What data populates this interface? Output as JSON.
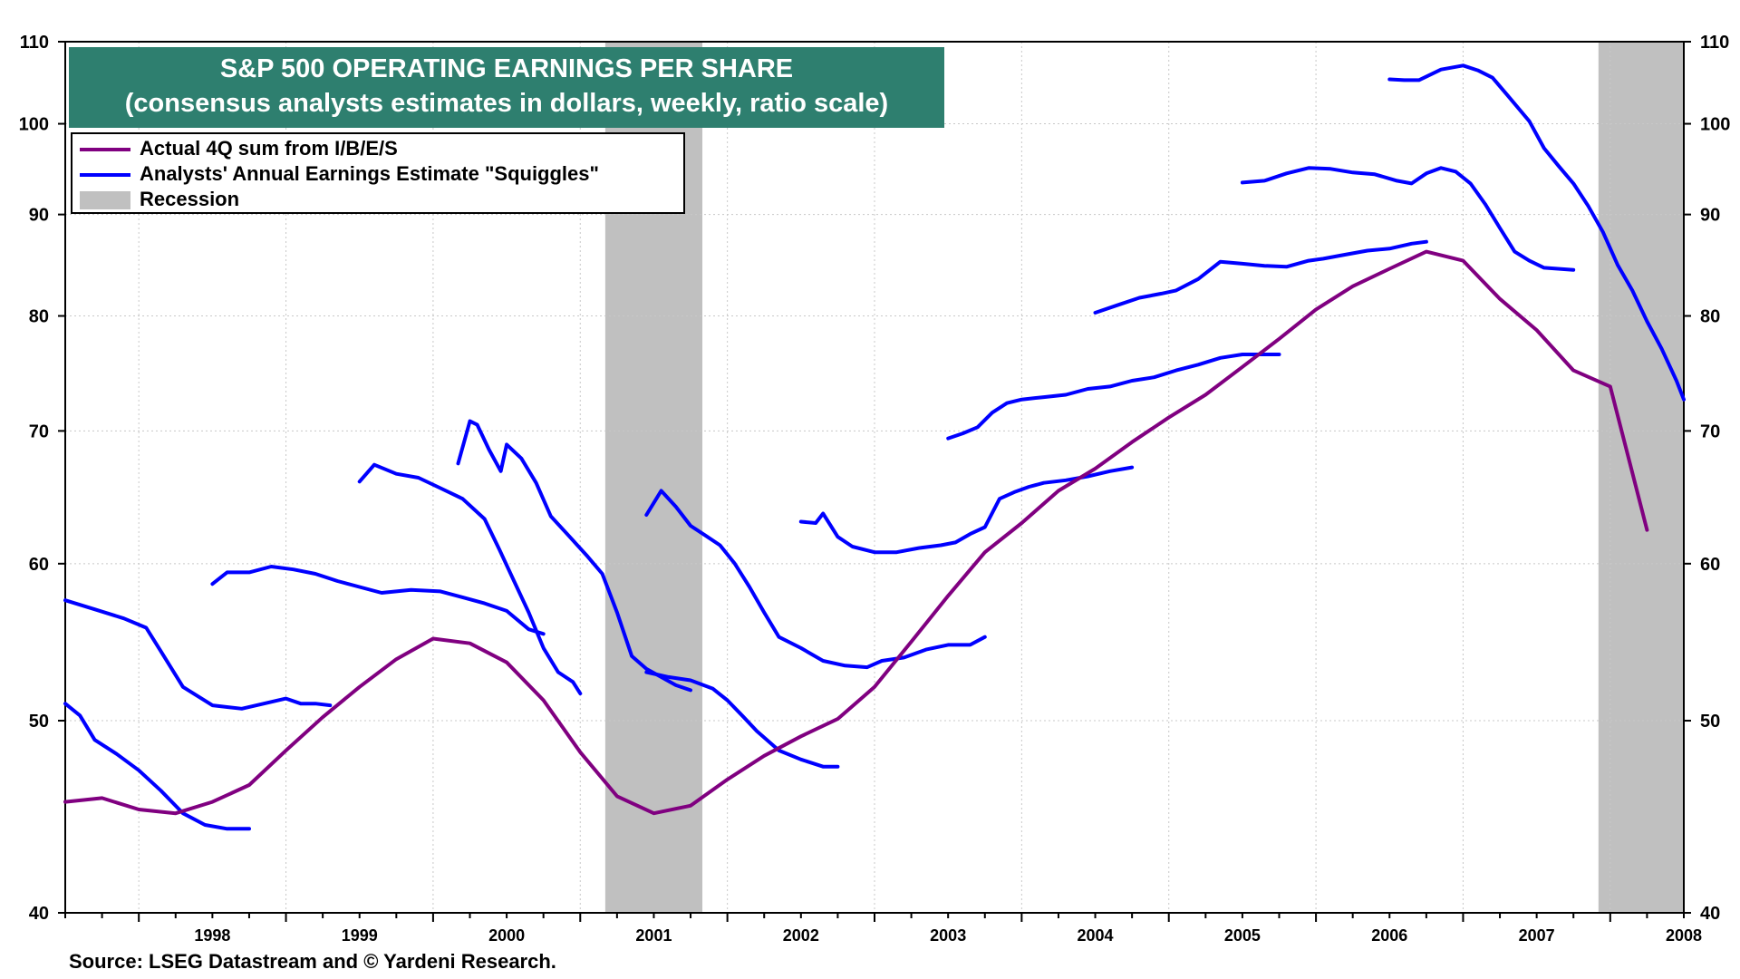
{
  "chart_data": {
    "type": "line",
    "title": "S&P 500 OPERATING EARNINGS PER SHARE",
    "subtitle": "(consensus analysts estimates in dollars, weekly, ratio scale)",
    "y_scale": "log",
    "ylim": [
      40,
      110
    ],
    "y_ticks": [
      40,
      50,
      60,
      70,
      80,
      90,
      100,
      110
    ],
    "xlim": [
      1997.5,
      2008.5
    ],
    "x_tick_labels": [
      "1998",
      "1999",
      "2000",
      "2001",
      "2002",
      "2003",
      "2004",
      "2005",
      "2006",
      "2007",
      "2008"
    ],
    "grid": true,
    "legend_position": "top-left",
    "legend": {
      "actual": "Actual 4Q sum from  I/B/E/S",
      "squiggles": "Analysts' Annual Earnings Estimate \"Squiggles\"",
      "recession": "Recession"
    },
    "colors": {
      "actual": "#800080",
      "squiggles": "#0000ff",
      "recession": "#c0c0c0",
      "title_bg": "#2e7f6f"
    },
    "recessions": [
      [
        2001.17,
        2001.83
      ],
      [
        2007.92,
        2008.5
      ]
    ],
    "actual": {
      "x": [
        1997.5,
        1997.75,
        1998.0,
        1998.25,
        1998.5,
        1998.75,
        1999.0,
        1999.25,
        1999.5,
        1999.75,
        2000.0,
        2000.25,
        2000.5,
        2000.75,
        2001.0,
        2001.25,
        2001.5,
        2001.75,
        2002.0,
        2002.25,
        2002.5,
        2002.75,
        2003.0,
        2003.25,
        2003.5,
        2003.75,
        2004.0,
        2004.25,
        2004.5,
        2004.75,
        2005.0,
        2005.25,
        2005.5,
        2005.75,
        2006.0,
        2006.25,
        2006.5,
        2006.75,
        2007.0,
        2007.25,
        2007.5,
        2007.75,
        2008.0,
        2008.25
      ],
      "y": [
        45.5,
        45.7,
        45.1,
        44.9,
        45.5,
        46.4,
        48.3,
        50.2,
        52.0,
        53.7,
        55.0,
        54.7,
        53.5,
        51.2,
        48.2,
        45.8,
        44.9,
        45.3,
        46.7,
        48.0,
        49.1,
        50.1,
        52.0,
        54.8,
        57.8,
        60.8,
        62.9,
        65.3,
        67.0,
        69.1,
        71.1,
        73.0,
        75.4,
        77.9,
        80.6,
        82.8,
        84.5,
        86.2,
        85.3,
        81.6,
        78.7,
        75.1,
        73.7,
        62.4
      ]
    },
    "squiggles": [
      {
        "x": [
          1997.5,
          1997.7,
          1997.9,
          1998.05,
          1998.15,
          1998.3,
          1998.5,
          1998.7,
          1998.85,
          1999.0,
          1999.1,
          1999.2,
          1999.3
        ],
        "y": [
          57.5,
          56.9,
          56.3,
          55.7,
          54.2,
          52.0,
          50.9,
          50.7,
          51.0,
          51.3,
          51.0,
          51.0,
          50.9
        ]
      },
      {
        "x": [
          1997.5,
          1997.6,
          1997.7,
          1997.85,
          1998.0,
          1998.15,
          1998.3,
          1998.45,
          1998.6,
          1998.75
        ],
        "y": [
          51.0,
          50.3,
          48.9,
          48.1,
          47.2,
          46.1,
          44.9,
          44.3,
          44.1,
          44.1
        ]
      },
      {
        "x": [
          1998.5,
          1998.6,
          1998.75,
          1998.9,
          1999.05,
          1999.2,
          1999.35,
          1999.5,
          1999.65,
          1999.85,
          2000.05,
          2000.2,
          2000.35,
          2000.5,
          2000.65,
          2000.75
        ],
        "y": [
          58.6,
          59.4,
          59.4,
          59.8,
          59.6,
          59.3,
          58.8,
          58.4,
          58.0,
          58.2,
          58.1,
          57.7,
          57.3,
          56.8,
          55.6,
          55.3
        ]
      },
      {
        "x": [
          1999.5,
          1999.6,
          1999.75,
          1999.9,
          2000.05,
          2000.2,
          2000.35,
          2000.45,
          2000.55,
          2000.65,
          2000.75,
          2000.85,
          2000.95,
          2001.0
        ],
        "y": [
          66.0,
          67.3,
          66.6,
          66.3,
          65.5,
          64.7,
          63.2,
          61.0,
          58.8,
          56.7,
          54.4,
          52.9,
          52.3,
          51.6
        ]
      },
      {
        "x": [
          2000.17,
          2000.25,
          2000.3,
          2000.38,
          2000.46,
          2000.5,
          2000.6,
          2000.7,
          2000.8,
          2000.92,
          2001.05,
          2001.15,
          2001.25,
          2001.35,
          2001.45,
          2001.55,
          2001.65,
          2001.75
        ],
        "y": [
          67.4,
          70.8,
          70.5,
          68.5,
          66.8,
          68.9,
          67.8,
          65.9,
          63.4,
          62.0,
          60.5,
          59.3,
          56.7,
          53.9,
          53.1,
          52.6,
          52.1,
          51.8
        ]
      },
      {
        "x": [
          2001.45,
          2001.55,
          2001.65,
          2001.75,
          2001.85,
          2001.95,
          2002.05,
          2002.15,
          2002.25,
          2002.35,
          2002.5,
          2002.65,
          2002.8,
          2002.95,
          2003.05,
          2003.2,
          2003.35,
          2003.5,
          2003.65,
          2003.75
        ],
        "y": [
          63.5,
          65.3,
          64.1,
          62.7,
          62.0,
          61.3,
          60.0,
          58.4,
          56.7,
          55.1,
          54.4,
          53.6,
          53.3,
          53.2,
          53.6,
          53.8,
          54.3,
          54.6,
          54.6,
          55.1
        ]
      },
      {
        "x": [
          2001.45,
          2001.6,
          2001.75,
          2001.9,
          2002.0,
          2002.1,
          2002.2,
          2002.35,
          2002.5,
          2002.65,
          2002.75
        ],
        "y": [
          52.9,
          52.6,
          52.4,
          51.9,
          51.2,
          50.3,
          49.4,
          48.3,
          47.8,
          47.4,
          47.4
        ]
      },
      {
        "x": [
          2002.5,
          2002.6,
          2002.65,
          2002.75,
          2002.85,
          2003.0,
          2003.15,
          2003.3,
          2003.45,
          2003.55,
          2003.65,
          2003.75,
          2003.85,
          2003.95,
          2004.05,
          2004.15,
          2004.3,
          2004.45,
          2004.6,
          2004.75
        ],
        "y": [
          63.0,
          62.9,
          63.6,
          61.9,
          61.2,
          60.8,
          60.8,
          61.1,
          61.3,
          61.5,
          62.1,
          62.6,
          64.7,
          65.2,
          65.6,
          65.9,
          66.1,
          66.4,
          66.8,
          67.1
        ]
      },
      {
        "x": [
          2003.5,
          2003.6,
          2003.7,
          2003.8,
          2003.9,
          2004.0,
          2004.15,
          2004.3,
          2004.45,
          2004.6,
          2004.75,
          2004.9,
          2005.05,
          2005.2,
          2005.35,
          2005.5,
          2005.75
        ],
        "y": [
          69.4,
          69.8,
          70.3,
          71.5,
          72.3,
          72.6,
          72.8,
          73.0,
          73.5,
          73.7,
          74.2,
          74.5,
          75.1,
          75.6,
          76.2,
          76.5,
          76.5
        ]
      },
      {
        "x": [
          2004.5,
          2004.65,
          2004.8,
          2004.95,
          2005.05,
          2005.2,
          2005.35,
          2005.5,
          2005.65,
          2005.8,
          2005.95,
          2006.05,
          2006.2,
          2006.35,
          2006.5,
          2006.65,
          2006.75
        ],
        "y": [
          80.3,
          81.0,
          81.7,
          82.1,
          82.4,
          83.5,
          85.2,
          85.0,
          84.8,
          84.7,
          85.3,
          85.5,
          85.9,
          86.3,
          86.5,
          87.0,
          87.2
        ]
      },
      {
        "x": [
          2005.5,
          2005.65,
          2005.8,
          2005.95,
          2006.1,
          2006.25,
          2006.4,
          2006.55,
          2006.65,
          2006.75,
          2006.85,
          2006.95,
          2007.05,
          2007.15,
          2007.25,
          2007.35,
          2007.45,
          2007.55,
          2007.75
        ],
        "y": [
          93.4,
          93.6,
          94.4,
          95.0,
          94.9,
          94.5,
          94.3,
          93.6,
          93.3,
          94.4,
          95.0,
          94.6,
          93.3,
          91.1,
          88.6,
          86.2,
          85.3,
          84.6,
          84.4
        ]
      },
      {
        "x": [
          2006.5,
          2006.6,
          2006.7,
          2006.85,
          2007.0,
          2007.1,
          2007.2,
          2007.3,
          2007.45,
          2007.55,
          2007.65,
          2007.75,
          2007.85,
          2007.95,
          2008.05,
          2008.15,
          2008.25,
          2008.35,
          2008.45,
          2008.5
        ],
        "y": [
          105.3,
          105.2,
          105.2,
          106.5,
          107.0,
          106.4,
          105.5,
          103.4,
          100.3,
          97.2,
          95.2,
          93.3,
          90.9,
          88.2,
          84.9,
          82.4,
          79.5,
          77.0,
          74.2,
          72.6
        ]
      }
    ]
  },
  "source": "Source: LSEG Datastream and © Yardeni Research."
}
